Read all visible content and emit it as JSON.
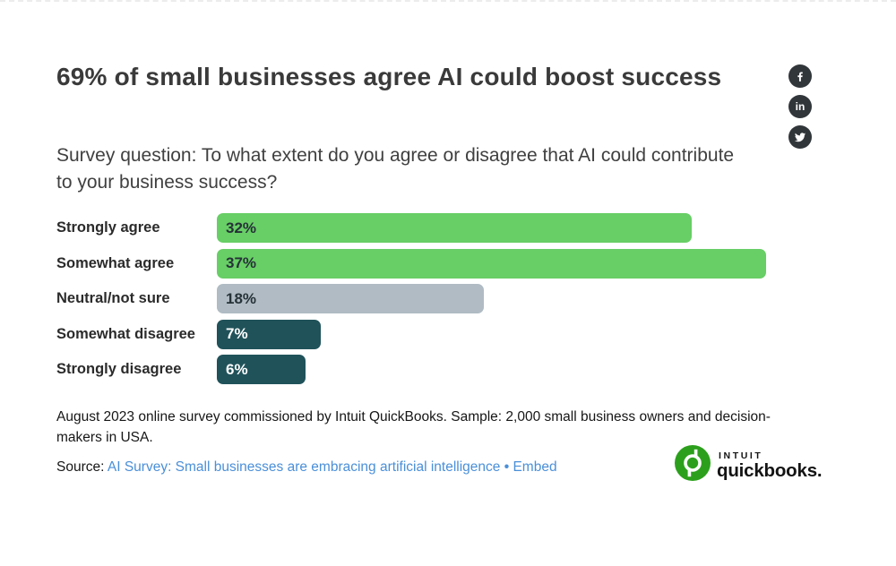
{
  "header": {
    "title": "69% of small businesses agree AI could boost success",
    "subtitle": "Survey question: To what extent do you agree or disagree that AI could contribute to your business success?"
  },
  "social": {
    "buttons": [
      "facebook",
      "linkedin",
      "twitter"
    ],
    "linkedin_glyph": "in",
    "circle_color": "#31363a"
  },
  "chart_data": {
    "type": "bar",
    "orientation": "horizontal",
    "title": "69% of small businesses agree AI could boost success",
    "categories": [
      "Strongly agree",
      "Somewhat agree",
      "Neutral/not sure",
      "Somewhat disagree",
      "Strongly disagree"
    ],
    "values": [
      32,
      37,
      18,
      7,
      6
    ],
    "value_labels": [
      "32%",
      "37%",
      "18%",
      "7%",
      "6%"
    ],
    "bar_colors": [
      "#68ce66",
      "#68ce66",
      "#b0bbc3",
      "#20525a",
      "#20525a"
    ],
    "label_text_colors": [
      "#263238",
      "#263238",
      "#263238",
      "#ffffff",
      "#ffffff"
    ],
    "xlim": [
      0,
      37
    ],
    "grid": false,
    "legend": false,
    "data_labels": "inside-start"
  },
  "notes": {
    "footnote": "August 2023 online survey commissioned by Intuit QuickBooks. Sample: 2,000 small business owners and decision-makers in USA."
  },
  "source": {
    "label": "Source:",
    "link_text": "AI Survey: Small businesses are embracing artificial intelligence",
    "separator": "•",
    "embed_text": "Embed",
    "link_color": "#4a8fd8"
  },
  "logo": {
    "brand_top": "INTUIT",
    "brand_bottom": "quickbooks.",
    "green": "#2ca01c"
  }
}
